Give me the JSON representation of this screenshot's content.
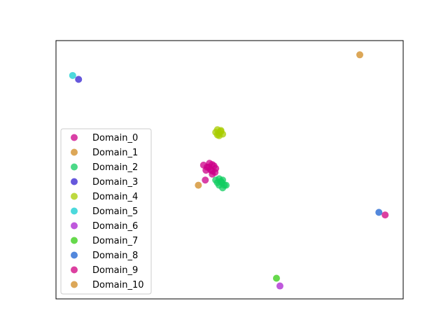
{
  "chart_data": {
    "type": "scatter",
    "title": "",
    "xlabel": "",
    "ylabel": "",
    "xlim": [
      0,
      100
    ],
    "ylim": [
      0,
      100
    ],
    "grid": false,
    "axis_ticks": false,
    "legend_placement": "center-left",
    "series": [
      {
        "name": "Domain_0",
        "color": "#cc0088",
        "points": [
          [
            44,
            51
          ],
          [
            45,
            52
          ],
          [
            45.5,
            51.5
          ],
          [
            44.5,
            50
          ],
          [
            46,
            50.5
          ],
          [
            45,
            49.5
          ],
          [
            43.5,
            51
          ],
          [
            45.8,
            49
          ],
          [
            44.2,
            52.5
          ],
          [
            43.2,
            49.8
          ],
          [
            42.5,
            51.8
          ],
          [
            45,
            48.3
          ],
          [
            43,
            46
          ]
        ]
      },
      {
        "name": "Domain_1",
        "color": "#d08a20",
        "points": [
          [
            87.5,
            94.5
          ],
          [
            41,
            44
          ]
        ]
      },
      {
        "name": "Domain_2",
        "color": "#10cc60",
        "points": [
          [
            46,
            46
          ],
          [
            47,
            46.5
          ],
          [
            48,
            46
          ],
          [
            46.5,
            45
          ],
          [
            47.5,
            45.5
          ],
          [
            48.5,
            44
          ],
          [
            47,
            44
          ],
          [
            48,
            43
          ],
          [
            49,
            44
          ],
          [
            47.8,
            45
          ]
        ]
      },
      {
        "name": "Domain_3",
        "color": "#3320d0",
        "points": [
          [
            6.5,
            85
          ]
        ]
      },
      {
        "name": "Domain_4",
        "color": "#a8cc00",
        "points": [
          [
            46,
            64.5
          ],
          [
            47,
            64.2
          ],
          [
            47.5,
            64.8
          ],
          [
            46.5,
            63.5
          ],
          [
            48,
            63.8
          ],
          [
            47,
            63.2
          ],
          [
            46.5,
            65.5
          ],
          [
            47.5,
            65.2
          ]
        ]
      },
      {
        "name": "Domain_5",
        "color": "#10ccd0",
        "points": [
          [
            4.8,
            86.5
          ]
        ]
      },
      {
        "name": "Domain_6",
        "color": "#aa22d0",
        "points": [
          [
            64.5,
            5
          ]
        ]
      },
      {
        "name": "Domain_7",
        "color": "#33cc10",
        "points": [
          [
            63.5,
            8
          ]
        ]
      },
      {
        "name": "Domain_8",
        "color": "#1a60d0",
        "points": [
          [
            93,
            33.5
          ]
        ]
      },
      {
        "name": "Domain_9",
        "color": "#d00080",
        "points": [
          [
            94.8,
            32.5
          ]
        ]
      },
      {
        "name": "Domain_10",
        "color": "#d08a20",
        "points": []
      }
    ]
  }
}
